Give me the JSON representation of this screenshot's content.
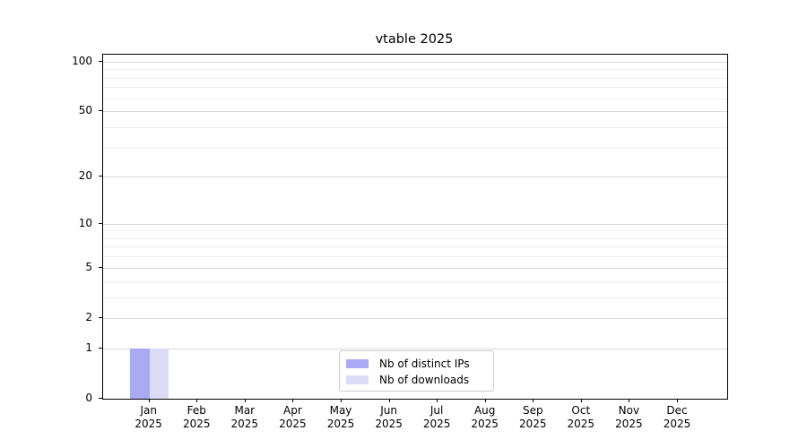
{
  "figure": {
    "background": "#ffffff"
  },
  "colors": {
    "axis": "#000000",
    "text": "#000000",
    "grid_major": "#d8d8d8",
    "grid_minor": "#efefef",
    "legend_border": "#cccccc",
    "series_1": "#a9a9f4",
    "series_2": "#dcdcf7"
  },
  "chart_data": {
    "type": "bar",
    "title": "vtable 2025",
    "xlabel": "",
    "ylabel": "",
    "categories": [
      "Jan\n2025",
      "Feb\n2025",
      "Mar\n2025",
      "Apr\n2025",
      "May\n2025",
      "Jun\n2025",
      "Jul\n2025",
      "Aug\n2025",
      "Sep\n2025",
      "Oct\n2025",
      "Nov\n2025",
      "Dec\n2025"
    ],
    "series": [
      {
        "name": "Nb of distinct IPs",
        "color": "#a9a9f4",
        "values": [
          1,
          0,
          0,
          0,
          0,
          0,
          0,
          0,
          0,
          0,
          0,
          0
        ]
      },
      {
        "name": "Nb of downloads",
        "color": "#dcdcf7",
        "values": [
          1,
          0,
          0,
          0,
          0,
          0,
          0,
          0,
          0,
          0,
          0,
          0
        ]
      }
    ],
    "y_scale": "log10(value+1)",
    "ylim": [
      0,
      110
    ],
    "y_ticks": [
      0,
      1,
      2,
      5,
      10,
      20,
      50,
      100
    ],
    "y_minor_ticks": [
      3,
      4,
      6,
      7,
      8,
      9,
      30,
      40,
      60,
      70,
      80,
      90
    ],
    "grid": true,
    "legend_position": "lower-center-inside"
  }
}
